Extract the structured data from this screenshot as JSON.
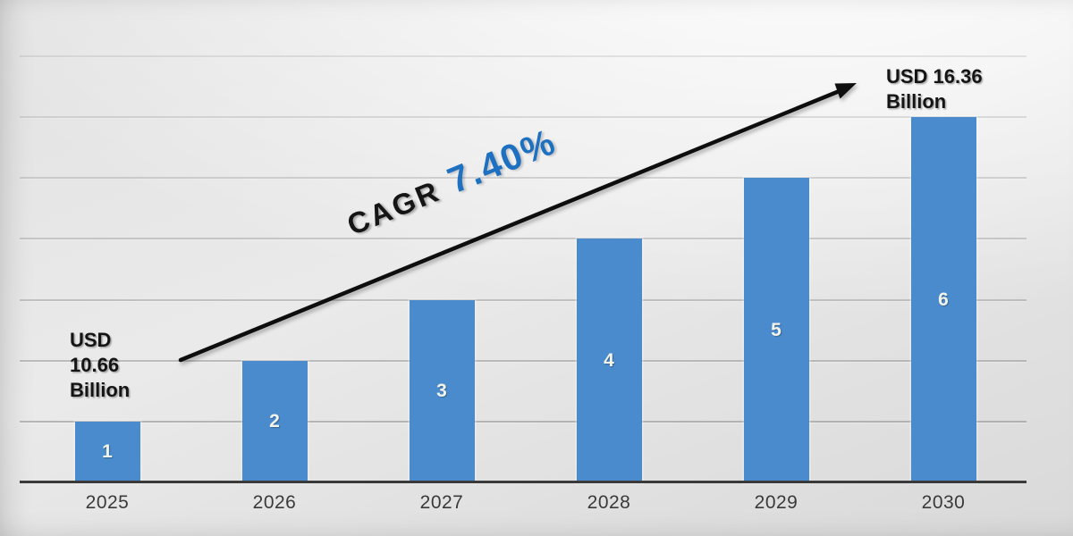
{
  "chart_data": {
    "type": "bar",
    "title": "",
    "xlabel": "",
    "ylabel": "",
    "categories": [
      "2025",
      "2026",
      "2027",
      "2028",
      "2029",
      "2030"
    ],
    "values": [
      1,
      2,
      3,
      4,
      5,
      6
    ],
    "data_labels": [
      "1",
      "2",
      "3",
      "4",
      "5",
      "6"
    ],
    "ylim": [
      0,
      7
    ],
    "grid": "horizontal",
    "legend": "none",
    "start_value_usd_billion": 10.66,
    "end_value_usd_billion": 16.36,
    "cagr_percent": 7.4
  },
  "annotations": {
    "cagr_label": "CAGR",
    "cagr_value": "7.40%",
    "start_label_line1": "USD",
    "start_label_line2": "10.66",
    "start_label_line3": "Billion",
    "end_label_line1": "USD 16.36",
    "end_label_line2": "Billion"
  },
  "colors": {
    "bar": "#4a8bce",
    "bar_label": "#f2f3e9",
    "gridline": "#8f8f8f",
    "axis_line": "#3a3a3a",
    "year_label": "#3a3a3a",
    "cagr_text": "#151515",
    "cagr_value_blue": "#1e70c1",
    "usd_label": "#141414",
    "arrow": "#0e0e0e"
  }
}
